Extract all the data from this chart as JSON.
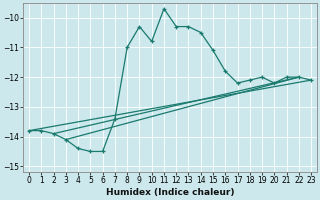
{
  "xlabel": "Humidex (Indice chaleur)",
  "background_color": "#cce8ec",
  "grid_color": "#ffffff",
  "line_color": "#1a7a6e",
  "xlim": [
    -0.5,
    23.5
  ],
  "ylim": [
    -15.2,
    -9.5
  ],
  "yticks": [
    -15,
    -14,
    -13,
    -12,
    -11,
    -10
  ],
  "xticks": [
    0,
    1,
    2,
    3,
    4,
    5,
    6,
    7,
    8,
    9,
    10,
    11,
    12,
    13,
    14,
    15,
    16,
    17,
    18,
    19,
    20,
    21,
    22,
    23
  ],
  "main_x": [
    0,
    1,
    2,
    3,
    4,
    5,
    6,
    7,
    8,
    9,
    10,
    11,
    12,
    13,
    14,
    15,
    16,
    17,
    18,
    19,
    20,
    21,
    22,
    23
  ],
  "main_y": [
    -13.8,
    -13.8,
    -13.9,
    -14.1,
    -14.4,
    -14.5,
    -14.5,
    -13.4,
    -11.0,
    -10.3,
    -10.8,
    -9.7,
    -10.3,
    -10.3,
    -10.5,
    -11.1,
    -11.8,
    -12.2,
    -12.1,
    -12.0,
    -12.2,
    -12.0,
    -12.0,
    -12.1
  ],
  "straight_lines": [
    {
      "x": [
        0,
        23
      ],
      "y": [
        -13.8,
        -12.1
      ]
    },
    {
      "x": [
        2,
        22
      ],
      "y": [
        -13.9,
        -12.0
      ]
    },
    {
      "x": [
        3,
        22
      ],
      "y": [
        -14.1,
        -12.0
      ]
    }
  ]
}
